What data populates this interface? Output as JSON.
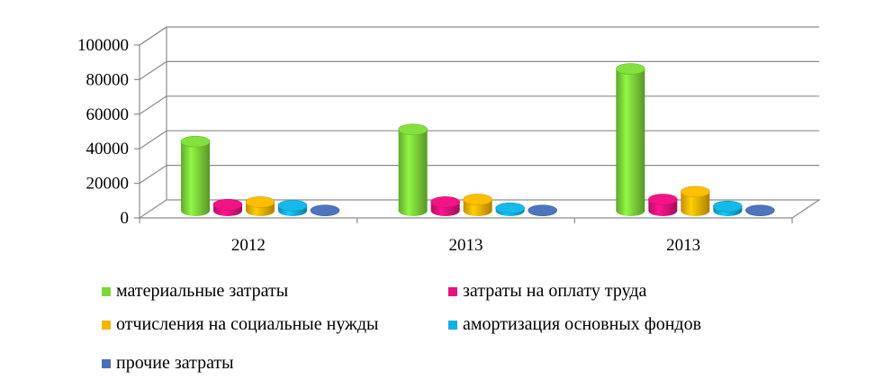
{
  "chart_data": {
    "type": "bar",
    "categories": [
      "2012",
      "2013",
      "2013"
    ],
    "series": [
      {
        "name": "материальные затраты",
        "values": [
          40000,
          47000,
          82000
        ],
        "color": "#7dd63a"
      },
      {
        "name": "затраты на оплату труда",
        "values": [
          3500,
          5000,
          6500
        ],
        "color": "#e8127f"
      },
      {
        "name": "отчисления на социальные нужды",
        "values": [
          5000,
          6500,
          11000
        ],
        "color": "#f7b500"
      },
      {
        "name": "амортизация основных фондов",
        "values": [
          3000,
          1500,
          2500
        ],
        "color": "#12b1e0"
      },
      {
        "name": "прочие затраты",
        "values": [
          200,
          200,
          200
        ],
        "color": "#4a6fb5"
      }
    ],
    "yticks": [
      "0",
      "20000",
      "40000",
      "60000",
      "80000",
      "100000"
    ],
    "ylim": [
      0,
      100000
    ],
    "grid": true,
    "legend_position": "bottom"
  }
}
